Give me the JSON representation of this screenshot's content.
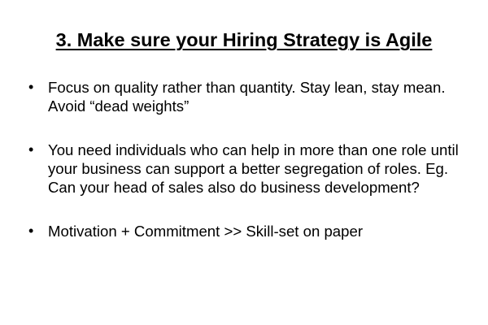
{
  "slide": {
    "title": "3. Make sure your Hiring Strategy is Agile",
    "bullet_symbol": "•",
    "bullets": [
      {
        "text": "Focus on quality rather than quantity. Stay lean, stay mean. Avoid “dead weights”"
      },
      {
        "text": "You need individuals who can help in more than one role until your business can support a better segregation of roles.  Eg. Can your head of sales also do business development?"
      },
      {
        "text": "Motivation + Commitment >> Skill-set on paper"
      }
    ]
  }
}
